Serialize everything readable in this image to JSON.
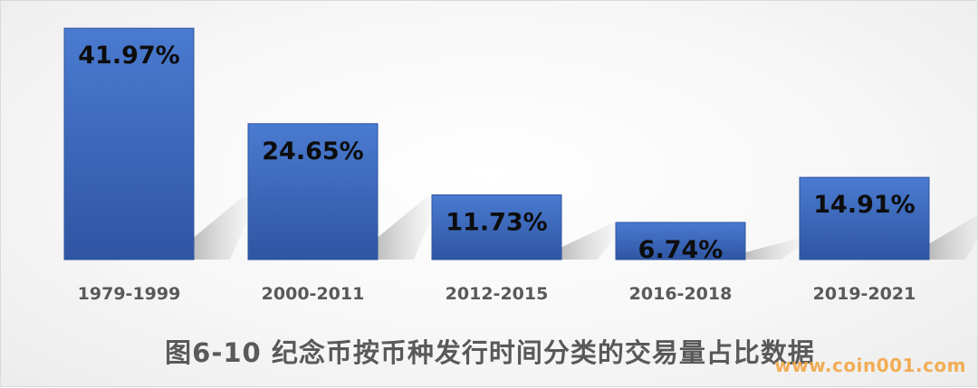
{
  "chart_data": {
    "type": "bar",
    "categories": [
      "1979-1999",
      "2000-2011",
      "2012-2015",
      "2016-2018",
      "2019-2021"
    ],
    "values": [
      41.97,
      24.65,
      11.73,
      6.74,
      14.91
    ],
    "data_labels": [
      "41.97%",
      "24.65%",
      "11.73%",
      "6.74%",
      "14.91%"
    ],
    "ylim": [
      0,
      42
    ],
    "grid": false,
    "bar_color": "#4472c4",
    "bar_color_dark": "#2f55a0"
  },
  "caption": "图6-10  纪念币按币种发行时间分类的交易量占比数据",
  "watermark": "www.coin001.com"
}
